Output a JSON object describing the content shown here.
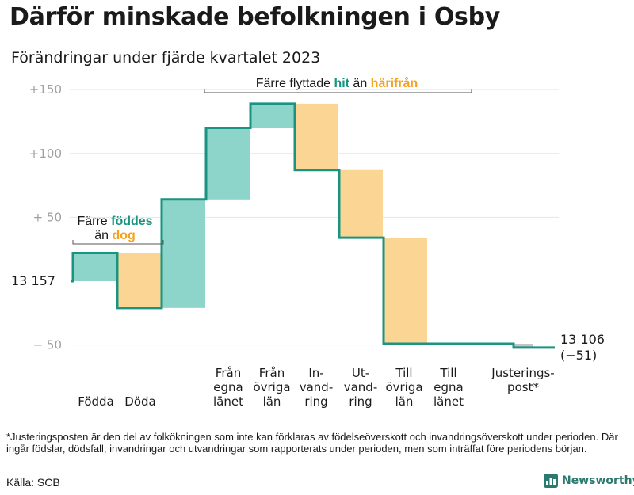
{
  "header": {
    "title": "Därför minskade befolkningen i Osby",
    "subtitle": "Förändringar under fjärde kvartalet 2023"
  },
  "chart_data": {
    "type": "waterfall",
    "start_value": 13157,
    "start_label": "13  157",
    "end_value": 13106,
    "end_label": "13 106",
    "end_change_label": "(−51)",
    "y_axis": {
      "range": [
        -55,
        150
      ],
      "ticks": [
        {
          "value": 150,
          "label": "+150"
        },
        {
          "value": 100,
          "label": "+100"
        },
        {
          "value": 50,
          "label": "+  50"
        },
        {
          "value": -50,
          "label": "−  50"
        }
      ]
    },
    "steps": [
      {
        "name": "Födda",
        "label_lines": [
          "Födda"
        ],
        "change": 22,
        "kind": "in"
      },
      {
        "name": "Döda",
        "label_lines": [
          "Döda"
        ],
        "change": -43,
        "kind": "out"
      },
      {
        "name": "Från egna länet",
        "label_lines": [
          "Från",
          "egna",
          "länet"
        ],
        "change": 85,
        "kind": "in"
      },
      {
        "name": "Från övriga län",
        "label_lines": [
          "Från",
          "övriga",
          "län"
        ],
        "change": 56,
        "kind": "in"
      },
      {
        "name": "Invandring",
        "label_lines": [
          "In-",
          "vand-",
          "ring"
        ],
        "change": 19,
        "kind": "in"
      },
      {
        "name": "Utvandring",
        "label_lines": [
          "Ut-",
          "vand-",
          "ring"
        ],
        "change": -52,
        "kind": "out"
      },
      {
        "name": "Till övriga län",
        "label_lines": [
          "Till",
          "övriga",
          "län"
        ],
        "change": -53,
        "kind": "out"
      },
      {
        "name": "Till egna länet",
        "label_lines": [
          "Till",
          "egna",
          "länet"
        ],
        "change": -83,
        "kind": "out"
      },
      {
        "name": "Justeringspost*",
        "label_lines": [
          "Justerings-",
          "post*"
        ],
        "change": -3,
        "kind": "out"
      }
    ],
    "annotations": {
      "births": {
        "line1": "Färre",
        "word_a": "föddes",
        "line2": "än",
        "word_b": "dog"
      },
      "migration": {
        "prefix": "Färre flyttade",
        "word_a": "hit",
        "middle": "än",
        "word_b": "härifrån"
      }
    },
    "colors": {
      "in": "#8dd5cb",
      "out": "#fad593",
      "line": "#1a9480",
      "in_text": "#1a9480",
      "out_text": "#f4a21f",
      "adjustment": "#c4c4c4",
      "grid": "#e6e6e6",
      "tick_label": "#a0a0a0"
    }
  },
  "footnote": "*Justeringsposten är den del av folkökningen som inte kan förklaras av födelseöverskott och invandringsöverskott under perioden. Där ingår födslar, dödsfall, invandringar och utvandringar som rapporterats under perioden, men som inträffat före periodens början.",
  "source": "Källa: SCB",
  "brand": {
    "name": "Newsworthy",
    "icon": "bar-chart-logo-icon"
  }
}
